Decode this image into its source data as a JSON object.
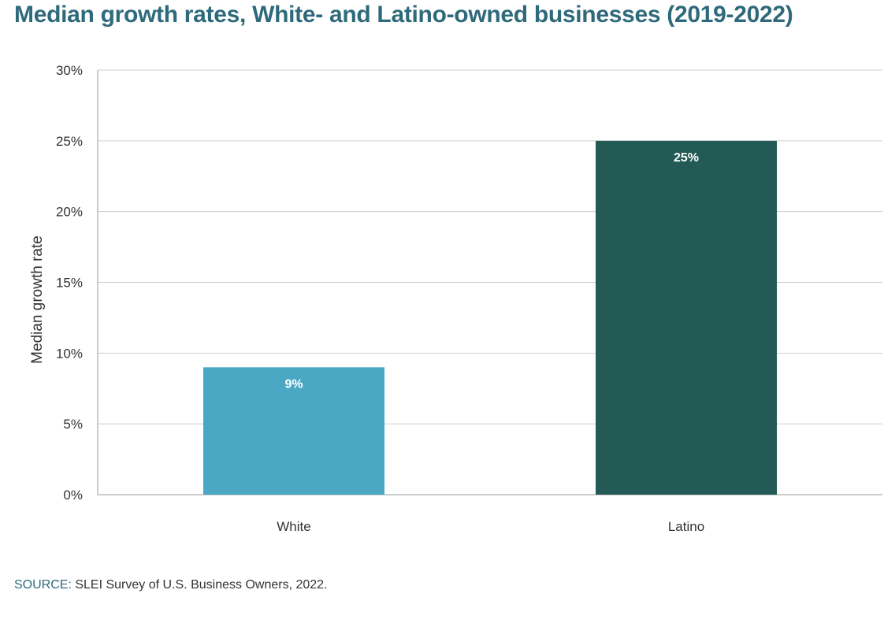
{
  "chart_data": {
    "type": "bar",
    "title": "Median growth rates, White- and Latino-owned businesses (2019-2022)",
    "xlabel": "",
    "ylabel": "Median growth rate",
    "categories": [
      "White",
      "Latino"
    ],
    "values": [
      9,
      25
    ],
    "data_labels": [
      "9%",
      "25%"
    ],
    "ylim": [
      0,
      30
    ],
    "yticks": [
      0,
      5,
      10,
      15,
      20,
      25,
      30
    ],
    "ytick_labels": [
      "0%",
      "5%",
      "10%",
      "15%",
      "20%",
      "25%",
      "30%"
    ],
    "grid": true,
    "legend": "none",
    "colors": [
      "#4aa8c4",
      "#245a55"
    ]
  },
  "source": {
    "label": "SOURCE:",
    "text": " SLEI Survey of U.S. Business Owners, 2022."
  }
}
